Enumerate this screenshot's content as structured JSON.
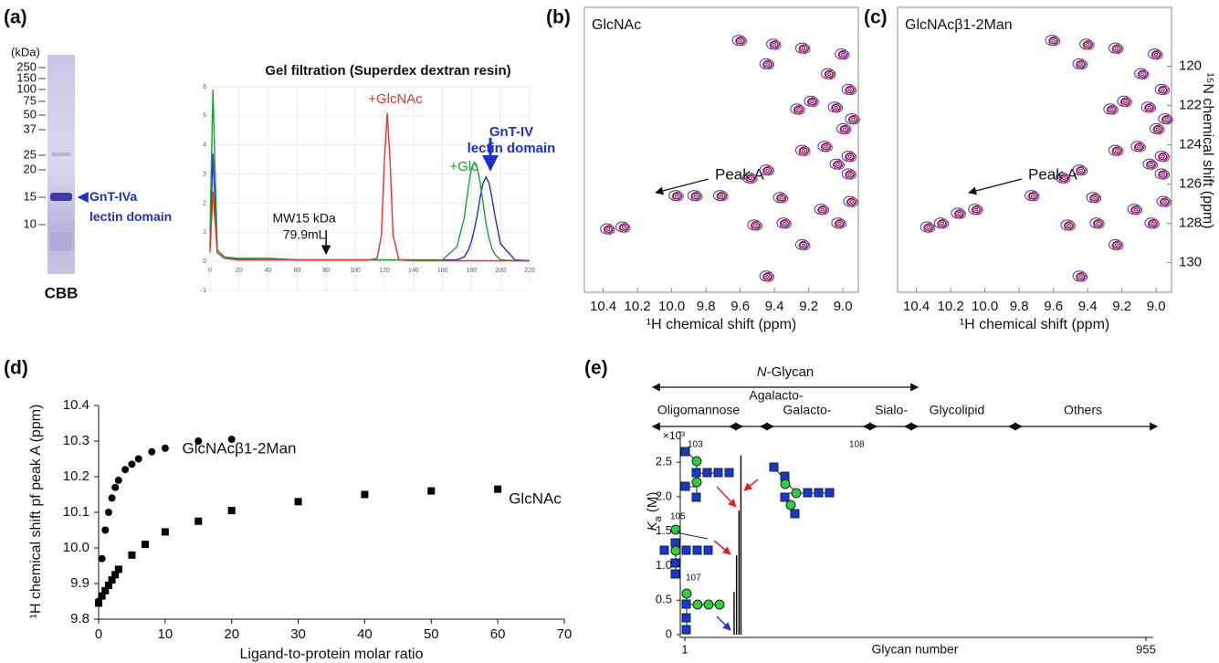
{
  "figure_labels": [
    "(a)",
    "(b)",
    "(c)",
    "(d)",
    "(e)"
  ],
  "gel": {
    "unit": "(kDa)",
    "markers": [
      250,
      150,
      100,
      75,
      50,
      37,
      25,
      20,
      15,
      10
    ],
    "band_label": "GnT-IVa lectin domain",
    "stain": "CBB"
  },
  "chart_data": [
    {
      "type": "line",
      "title": "Gel filtration (Superdex dextran resin)",
      "x": [
        0,
        2,
        5,
        10,
        20,
        40,
        60,
        80,
        100,
        110,
        115,
        118,
        120,
        122,
        124,
        126,
        130,
        140,
        160,
        170,
        175,
        178,
        180,
        182,
        184,
        186,
        188,
        190,
        192,
        194,
        196,
        200,
        210,
        220
      ],
      "series": [
        {
          "name": "GnT-IV lectin domain",
          "color": "#1f2fd6",
          "values": [
            0.5,
            3.7,
            0.3,
            0.1,
            0.08,
            0.1,
            0.05,
            0.05,
            0.05,
            0.05,
            0.05,
            0.05,
            0.05,
            0.05,
            0.05,
            0.05,
            0.05,
            0.05,
            0.05,
            0.05,
            0.15,
            0.4,
            0.7,
            1.1,
            1.6,
            2.2,
            2.7,
            2.9,
            2.7,
            2.2,
            1.6,
            0.6,
            0.05,
            0.02
          ]
        },
        {
          "name": "+Glc",
          "color": "#1f9e35",
          "values": [
            1.0,
            5.9,
            0.4,
            0.15,
            0.1,
            0.1,
            0.05,
            0.05,
            0.05,
            0.05,
            0.05,
            0.05,
            0.05,
            0.05,
            0.05,
            0.05,
            0.05,
            0.05,
            0.05,
            0.5,
            1.5,
            2.6,
            3.2,
            3.4,
            3.2,
            2.7,
            2.0,
            1.3,
            0.8,
            0.45,
            0.25,
            0.05,
            0.02,
            0.02
          ]
        },
        {
          "name": "+GlcNAc",
          "color": "#e8332a",
          "values": [
            0.3,
            2.4,
            0.3,
            0.1,
            0.05,
            0.05,
            0.05,
            0.05,
            0.05,
            0.05,
            0.1,
            0.9,
            3.4,
            5.1,
            3.4,
            0.9,
            0.05,
            0.02,
            0.02,
            0.02,
            0.02,
            0.02,
            0.02,
            0.02,
            0.02,
            0.02,
            0.02,
            0.02,
            0.02,
            0.02,
            0.02,
            0.02,
            0.02,
            0.02
          ]
        }
      ],
      "xlim": [
        0,
        220
      ],
      "xticks": [
        0,
        20,
        40,
        60,
        80,
        100,
        120,
        140,
        160,
        180,
        200,
        220
      ],
      "ylim": [
        -1,
        6
      ],
      "yticks": [
        -1,
        0,
        1,
        2,
        3,
        4,
        5,
        6
      ],
      "grid": true,
      "annotation": {
        "lines": [
          "MW15 kDa",
          "79.9mL"
        ],
        "x": 79.9
      }
    },
    {
      "type": "scatter",
      "marker": "contour",
      "label": "GlcNAc",
      "annotation": "Peak A",
      "x_label": "¹H chemical shift (ppm)",
      "contour_colors": [
        "#2a35d0",
        "#d92a2a",
        "#7a1460"
      ],
      "xlim": [
        10.51,
        8.91
      ],
      "xticks": [
        10.4,
        10.2,
        {
          "value": 10,
          "label": "10.0"
        },
        9.8,
        9.6,
        9.4,
        9.2,
        {
          "value": 9,
          "label": "9.0"
        }
      ],
      "ylim": [
        131.5,
        117.0
      ],
      "series": [
        {
          "x": [
            9.6,
            9.4,
            9.23,
            9.0,
            9.44,
            9.08,
            8.96,
            9.04,
            9.26,
            9.18,
            8.99,
            8.94,
            9.1,
            8.96,
            9.23,
            9.03,
            8.96,
            9.54,
            9.44,
            9.36,
            8.95,
            9.12,
            10.37,
            10.28,
            9.97,
            9.86,
            9.71,
            9.51,
            9.34,
            9.23,
            9.02,
            9.44
          ],
          "values": [
            118.7,
            118.9,
            119.1,
            119.4,
            119.9,
            120.4,
            121.2,
            122.1,
            122.2,
            121.8,
            123.2,
            122.7,
            124.1,
            124.6,
            124.3,
            125.0,
            125.5,
            125.7,
            125.3,
            126.7,
            126.9,
            127.3,
            128.3,
            128.2,
            126.6,
            126.6,
            126.6,
            128.1,
            128.0,
            129.1,
            128.0,
            130.7
          ]
        }
      ]
    },
    {
      "type": "scatter",
      "marker": "contour",
      "label": "GlcNAcβ1-2Man",
      "annotation": "Peak A",
      "x_label": "¹H chemical shift (ppm)",
      "y_label": "¹⁵N chemical shift (ppm)",
      "contour_colors": [
        "#2a35d0",
        "#d92a2a",
        "#7a1460"
      ],
      "xlim": [
        10.51,
        8.91
      ],
      "xticks": [
        10.4,
        10.2,
        {
          "value": 10,
          "label": "10.0"
        },
        9.8,
        9.6,
        9.4,
        9.2,
        {
          "value": 9,
          "label": "9.0"
        }
      ],
      "ylim": [
        131.5,
        117.0
      ],
      "yticks": [
        120,
        122,
        124,
        126,
        128,
        130
      ],
      "series": [
        {
          "x": [
            9.6,
            9.4,
            9.23,
            9.0,
            9.44,
            9.08,
            8.96,
            9.04,
            9.26,
            9.18,
            8.99,
            8.94,
            9.1,
            8.96,
            9.23,
            9.03,
            8.96,
            9.54,
            9.44,
            9.36,
            8.95,
            9.12,
            10.33,
            10.25,
            10.15,
            10.05,
            9.72,
            9.51,
            9.34,
            9.23,
            9.02,
            9.44
          ],
          "values": [
            118.7,
            118.9,
            119.1,
            119.4,
            119.9,
            120.4,
            121.2,
            122.1,
            122.2,
            121.8,
            123.2,
            122.7,
            124.1,
            124.6,
            124.3,
            125.0,
            125.5,
            125.7,
            125.3,
            126.7,
            126.9,
            127.3,
            128.2,
            128.0,
            127.5,
            127.3,
            126.6,
            128.1,
            128.0,
            129.1,
            128.0,
            130.7
          ]
        }
      ]
    },
    {
      "type": "scatter",
      "x_label": "Ligand-to-protein molar ratio",
      "y_label": "¹H chemical shift pf peak A (ppm)",
      "xlim": [
        0,
        70
      ],
      "xticks": [
        0,
        10,
        20,
        30,
        40,
        50,
        60,
        70
      ],
      "ylim": [
        9.8,
        10.4
      ],
      "yticks": [
        9.8,
        9.9,
        {
          "value": 10,
          "label": "10.0"
        },
        10.1,
        10.2,
        10.3,
        10.4
      ],
      "series": [
        {
          "name": "GlcNAcβ1-2Man",
          "marker": "circle",
          "color": "#000000",
          "x": [
            0,
            0.5,
            1,
            1.5,
            2,
            2.5,
            3,
            4,
            5,
            6,
            8,
            10,
            15,
            20
          ],
          "values": [
            9.85,
            9.97,
            10.05,
            10.1,
            10.14,
            10.17,
            10.19,
            10.22,
            10.235,
            10.25,
            10.27,
            10.28,
            10.3,
            10.305
          ]
        },
        {
          "name": "GlcNAc",
          "marker": "square",
          "color": "#000000",
          "x": [
            0,
            0.5,
            1,
            1.5,
            2,
            2.5,
            3,
            5,
            7,
            10,
            15,
            20,
            30,
            40,
            50,
            60
          ],
          "values": [
            9.845,
            9.865,
            9.88,
            9.895,
            9.91,
            9.925,
            9.94,
            9.98,
            10.01,
            10.045,
            10.075,
            10.105,
            10.13,
            10.15,
            10.16,
            10.165
          ]
        }
      ]
    },
    {
      "type": "bar",
      "x_label": "Glycan number",
      "y_label": "Ka (M)",
      "y_unit": "×10³",
      "color": "#000000",
      "x": [
        103,
        105,
        107,
        108
      ],
      "values": [
        0.62,
        1.15,
        1.8,
        2.6
      ],
      "xlim": [
        1,
        955
      ],
      "xticks": [
        1,
        955
      ],
      "ylim": [
        0,
        2.9
      ],
      "yticks": [
        0,
        0.5,
        {
          "value": 1,
          "label": "1.0"
        },
        1.5,
        {
          "value": 2,
          "label": "2.0"
        },
        2.5
      ],
      "groups": {
        "span_label": "N-Glycan",
        "classes": [
          "Oligomannose",
          "Agalacto-",
          "Galacto-",
          "Sialo-",
          "Glycolipid",
          "Others"
        ]
      }
    }
  ]
}
